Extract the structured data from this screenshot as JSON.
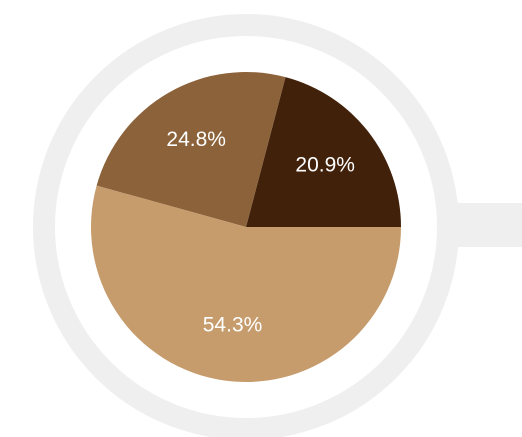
{
  "chart_data": {
    "type": "pie",
    "start_angle_deg": 0,
    "direction": "counterclockwise-from-east",
    "slices": [
      {
        "label": "20.9%",
        "value": 20.9,
        "color": "#42210b"
      },
      {
        "label": "24.8%",
        "value": 24.8,
        "color": "#8b6239"
      },
      {
        "label": "54.3%",
        "value": 54.3,
        "color": "#c69c6d"
      }
    ]
  },
  "decoration": {
    "mug_ring_color": "#efefef",
    "mug_handle_color": "#efefef"
  }
}
